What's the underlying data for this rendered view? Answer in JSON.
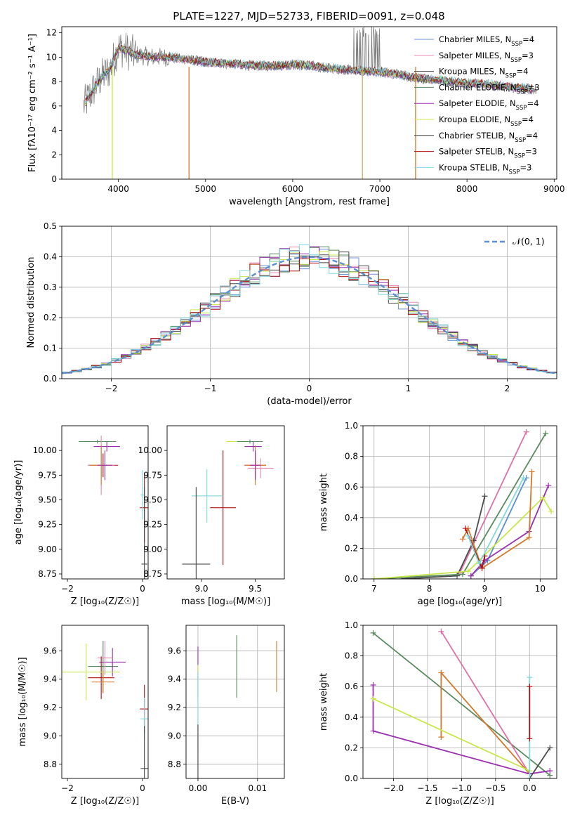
{
  "figure_title": "PLATE=1227, MJD=52733, FIBERID=0091, z=0.048",
  "model_names": [
    "Chabrier MILES",
    "Salpeter MILES",
    "Kroupa MILES",
    "Chabrier ELODIE",
    "Salpeter ELODIE",
    "Kroupa ELODIE",
    "Chabrier STELIB",
    "Salpeter STELIB",
    "Kroupa STELIB"
  ],
  "model_colors": [
    "#6b8fd6",
    "#e889b4",
    "#4c4c4c",
    "#5a8a5e",
    "#9b30b0",
    "#c8e84a",
    "#444444",
    "#b01010",
    "#7fd8dc"
  ],
  "chart_data": [
    {
      "type": "line",
      "title": "PLATE=1227, MJD=52733, FIBERID=0091, z=0.048",
      "xlabel": "wavelength [Angstrom, rest frame]",
      "ylabel": "Flux [fλ10⁻¹⁷ erg cm⁻² s⁻¹ A⁻¹]",
      "xlim": [
        3350,
        9030
      ],
      "ylim": [
        0,
        12.5
      ],
      "xticks": [
        4000,
        5000,
        6000,
        7000,
        8000,
        9000
      ],
      "yticks": [
        0,
        2,
        4,
        6,
        8,
        10,
        12
      ],
      "grid": false,
      "legend_position": "right",
      "legend": [
        {
          "label": "Chabrier MILES, N",
          "sub": "SSP",
          "suffix": "=4",
          "color": "#6b8fd6"
        },
        {
          "label": "Salpeter MILES, N",
          "sub": "SSP",
          "suffix": "=3",
          "color": "#e889b4"
        },
        {
          "label": "Kroupa MILES, N",
          "sub": "SSP",
          "suffix": "=4",
          "color": "#4c4c4c"
        },
        {
          "label": "Chabrier ELODIE, N",
          "sub": "SSP",
          "suffix": "=3",
          "color": "#5a8a5e"
        },
        {
          "label": "Salpeter ELODIE, N",
          "sub": "SSP",
          "suffix": "=4",
          "color": "#9b30b0"
        },
        {
          "label": "Kroupa ELODIE, N",
          "sub": "SSP",
          "suffix": "=4",
          "color": "#c8e84a"
        },
        {
          "label": "Chabrier STELIB, N",
          "sub": "SSP",
          "suffix": "=4",
          "color": "#444444"
        },
        {
          "label": "Salpeter STELIB, N",
          "sub": "SSP",
          "suffix": "=3",
          "color": "#b01010"
        },
        {
          "label": "Kroupa STELIB, N",
          "sub": "SSP",
          "suffix": "=3",
          "color": "#7fd8dc"
        }
      ],
      "spectrum_trend": {
        "x": [
          3600,
          3700,
          3800,
          3900,
          4000,
          4100,
          4200,
          4400,
          4600,
          4800,
          5000,
          5200,
          5400,
          5600,
          5800,
          6000,
          6200,
          6400,
          6600,
          6800,
          7000,
          7200,
          7400,
          7600,
          7800,
          8000,
          8200,
          8400,
          8600,
          8800
        ],
        "y": [
          6.0,
          7.2,
          8.3,
          9.0,
          10.8,
          10.5,
          10.2,
          10.0,
          10.0,
          9.8,
          9.6,
          9.5,
          9.4,
          9.3,
          9.3,
          9.4,
          9.3,
          9.1,
          9.0,
          8.9,
          8.8,
          8.6,
          8.3,
          8.2,
          8.0,
          7.9,
          7.8,
          7.6,
          7.5,
          7.3
        ]
      }
    },
    {
      "type": "step",
      "xlabel": "(data-model)/error",
      "ylabel": "Normed distribution",
      "xlim": [
        -2.5,
        2.5
      ],
      "ylim": [
        0,
        0.5
      ],
      "xticks": [
        -2,
        -1,
        0,
        1,
        2
      ],
      "yticks": [
        0.0,
        0.1,
        0.2,
        0.3,
        0.4,
        0.5
      ],
      "grid": true,
      "legend_position": "top-right",
      "legend": [
        {
          "label": "𝒩(0, 1)",
          "color": "#5b8fd0",
          "style": "dashed"
        }
      ],
      "bin_width": 0.1,
      "bin_start": -2.5
    },
    {
      "type": "errorbar",
      "xlabel": "Z [log₁₀(Z/Z☉)]",
      "ylabel": "age  [log₁₀(age/yr)]",
      "xlim": [
        -2.15,
        0.15
      ],
      "ylim": [
        8.7,
        10.25
      ],
      "xticks": [
        -2,
        0
      ],
      "yticks": [
        8.75,
        9.0,
        9.25,
        9.5,
        9.75,
        10.0
      ]
    },
    {
      "type": "errorbar",
      "xlabel": "mass [log₁₀(M/M☉)]",
      "xlim": [
        8.68,
        9.77
      ],
      "ylim": [
        8.7,
        10.25
      ],
      "xticks": [
        9.0,
        9.5
      ],
      "yticks": [
        8.75,
        9.0,
        9.25,
        9.5,
        9.75,
        10.0
      ]
    },
    {
      "type": "line",
      "xlabel": "age  [log₁₀(age/yr)]",
      "ylabel": "mass weight",
      "xlim": [
        6.8,
        10.3
      ],
      "ylim": [
        0,
        1.0
      ],
      "xticks": [
        7,
        8,
        9,
        10
      ],
      "yticks": [
        0.0,
        0.2,
        0.4,
        0.6,
        0.8,
        1.0
      ],
      "grid": true,
      "series": [
        {
          "x": [
            8.55,
            9.75
          ],
          "y": [
            0.04,
            0.96
          ],
          "color": "#e070a8"
        },
        {
          "x": [
            8.75,
            9.05,
            9.75
          ],
          "y": [
            0.02,
            0.12,
            0.66
          ],
          "color": "#5b8fd0"
        },
        {
          "x": [
            7.5,
            8.5,
            8.8,
            9.0
          ],
          "y": [
            0.0,
            0.02,
            0.25,
            0.54
          ],
          "color": "#4c4c4c"
        },
        {
          "x": [
            7.0,
            8.6,
            10.1
          ],
          "y": [
            0.0,
            0.03,
            0.95
          ],
          "color": "#5a8a5e"
        },
        {
          "x": [
            8.75,
            9.0,
            9.8,
            10.15
          ],
          "y": [
            0.02,
            0.12,
            0.31,
            0.61
          ],
          "color": "#9b30b0"
        },
        {
          "x": [
            7.0,
            8.7,
            10.05,
            10.2
          ],
          "y": [
            0.0,
            0.05,
            0.53,
            0.44
          ],
          "color": "#c8e84a"
        },
        {
          "x": [
            8.6,
            8.7,
            8.95,
            9.8,
            9.85
          ],
          "y": [
            0.26,
            0.33,
            0.07,
            0.27,
            0.7
          ],
          "color": "#d4782a"
        },
        {
          "x": [
            8.65,
            8.95,
            9.0
          ],
          "y": [
            0.33,
            0.07,
            0.15
          ],
          "color": "#b01010"
        },
        {
          "x": [
            8.7,
            8.9,
            9.7
          ],
          "y": [
            0.28,
            0.1,
            0.66
          ],
          "color": "#7fd8dc"
        }
      ]
    },
    {
      "type": "errorbar",
      "xlabel": "Z [log₁₀(Z/Z☉)]",
      "ylabel": "mass [log₁₀(M/M☉)]",
      "xlim": [
        -2.15,
        0.15
      ],
      "ylim": [
        8.7,
        9.78
      ],
      "xticks": [
        -2,
        0
      ],
      "yticks": [
        8.8,
        9.0,
        9.2,
        9.4,
        9.6
      ]
    },
    {
      "type": "errorbar",
      "xlabel": "E(B-V)",
      "xlim": [
        -0.002,
        0.0145
      ],
      "ylim": [
        8.7,
        9.78
      ],
      "xticks": [
        0.0,
        0.01
      ],
      "yticks": [
        8.8,
        9.0,
        9.2,
        9.4,
        9.6
      ]
    },
    {
      "type": "line",
      "xlabel": "Z [log₁₀(Z/Z☉)]",
      "ylabel": "mass weight",
      "xlim": [
        -2.45,
        0.4
      ],
      "ylim": [
        0,
        1.0
      ],
      "xticks": [
        -2.0,
        -1.5,
        -1.0,
        -0.5,
        0.0
      ],
      "yticks": [
        0.0,
        0.2,
        0.4,
        0.6,
        0.8,
        1.0
      ],
      "grid": true,
      "series": [
        {
          "x": [
            -2.3,
            0.3
          ],
          "y": [
            0.95,
            0.02
          ],
          "color": "#5a8a5e"
        },
        {
          "x": [
            -1.3,
            0.0
          ],
          "y": [
            0.96,
            0.03
          ],
          "color": "#e070a8"
        },
        {
          "x": [
            -1.3,
            -1.3,
            0.0
          ],
          "y": [
            0.27,
            0.69,
            0.03
          ],
          "color": "#d4782a"
        },
        {
          "x": [
            -2.3,
            -2.3,
            0.0,
            0.3
          ],
          "y": [
            0.61,
            0.31,
            0.03,
            0.05
          ],
          "color": "#9b30b0"
        },
        {
          "x": [
            -2.3,
            0.0
          ],
          "y": [
            0.52,
            0.05
          ],
          "color": "#c8e84a"
        },
        {
          "x": [
            0.0,
            0.3
          ],
          "y": [
            0.0,
            0.2
          ],
          "color": "#4c4c4c"
        },
        {
          "x": [
            0.0,
            0.0
          ],
          "y": [
            0.0,
            0.66
          ],
          "color": "#7fd8dc"
        },
        {
          "x": [
            0.0,
            0.0
          ],
          "y": [
            0.26,
            0.6
          ],
          "color": "#b01010"
        }
      ]
    }
  ]
}
